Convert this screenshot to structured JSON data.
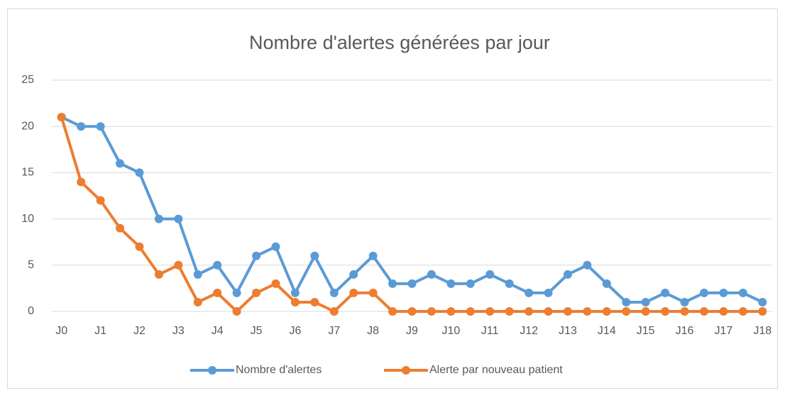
{
  "chart_data": {
    "type": "line",
    "title": "Nombre d'alertes générées par jour",
    "categories": [
      "J0",
      null,
      "J1",
      null,
      "J2",
      null,
      "J3",
      null,
      "J4",
      null,
      "J5",
      null,
      "J6",
      null,
      "J7",
      null,
      "J8",
      null,
      "J9",
      null,
      "J10",
      null,
      "J11",
      null,
      "J12",
      null,
      "J13",
      null,
      "J14",
      null,
      "J15",
      null,
      "J16",
      null,
      "J17",
      null,
      "J18"
    ],
    "series": [
      {
        "name": "Nombre d'alertes",
        "color": "#5b9bd5",
        "values": [
          21,
          20,
          20,
          16,
          15,
          10,
          10,
          4,
          5,
          2,
          6,
          7,
          2,
          6,
          2,
          4,
          6,
          3,
          3,
          4,
          3,
          3,
          4,
          3,
          2,
          2,
          4,
          5,
          3,
          1,
          1,
          2,
          1,
          2,
          2,
          2,
          1
        ]
      },
      {
        "name": "Alerte par nouveau patient",
        "color": "#ed7d31",
        "values": [
          21,
          14,
          12,
          9,
          7,
          4,
          5,
          1,
          2,
          0,
          2,
          3,
          1,
          1,
          0,
          2,
          2,
          0,
          0,
          0,
          0,
          0,
          0,
          0,
          0,
          0,
          0,
          0,
          0,
          0,
          0,
          0,
          0,
          0,
          0,
          0,
          0
        ]
      }
    ],
    "ylim": [
      0,
      25
    ],
    "yticks": [
      0,
      5,
      10,
      15,
      20,
      25
    ],
    "grid": true,
    "legend": "bottom"
  }
}
